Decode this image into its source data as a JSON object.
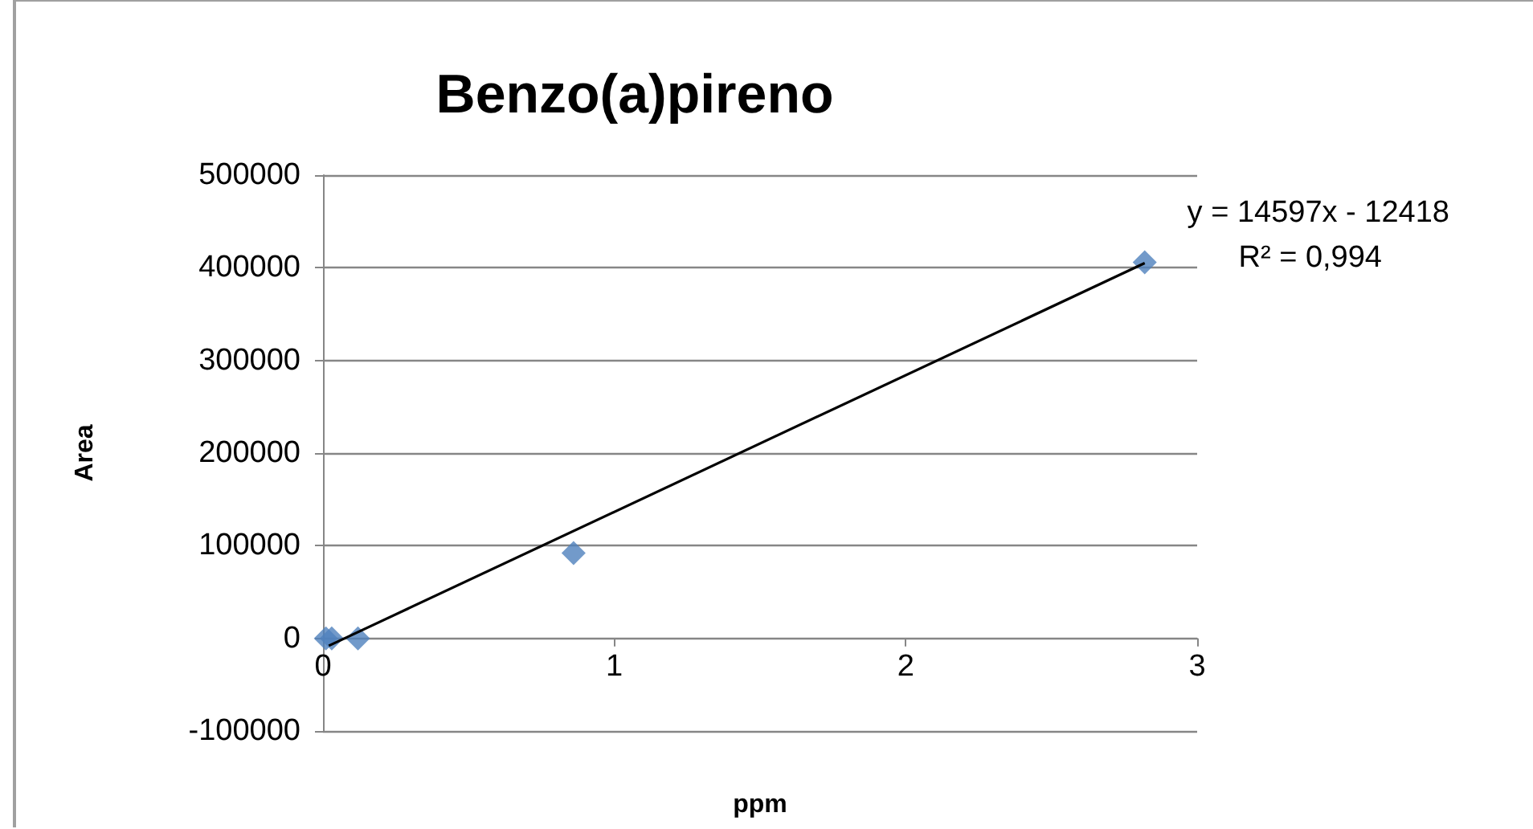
{
  "chart_data": {
    "type": "scatter",
    "title": "Benzo(a)pireno",
    "xlabel": "ppm",
    "ylabel": "Area",
    "series": [
      {
        "color": "#4f81bd",
        "x": [
          0.01,
          0.03,
          0.12,
          0.86,
          2.82
        ],
        "values": [
          0,
          0,
          0,
          92000,
          406000
        ],
        "marker": "diamond"
      },
      {
        "type": "line",
        "color": "#000000",
        "x": [
          0.02,
          2.82
        ],
        "values": [
          -8000,
          405000
        ],
        "marker": "none",
        "line_style": "solid"
      }
    ],
    "annotations": [
      "y = 14597x - 12418",
      "R² = 0,994"
    ],
    "xlim": [
      0,
      3
    ],
    "xticks": [
      0,
      1,
      2,
      3
    ],
    "ylim": [
      -100000,
      500000
    ],
    "yticks": [
      -100000,
      0,
      100000,
      200000,
      300000,
      400000,
      500000
    ],
    "grid": "y"
  }
}
